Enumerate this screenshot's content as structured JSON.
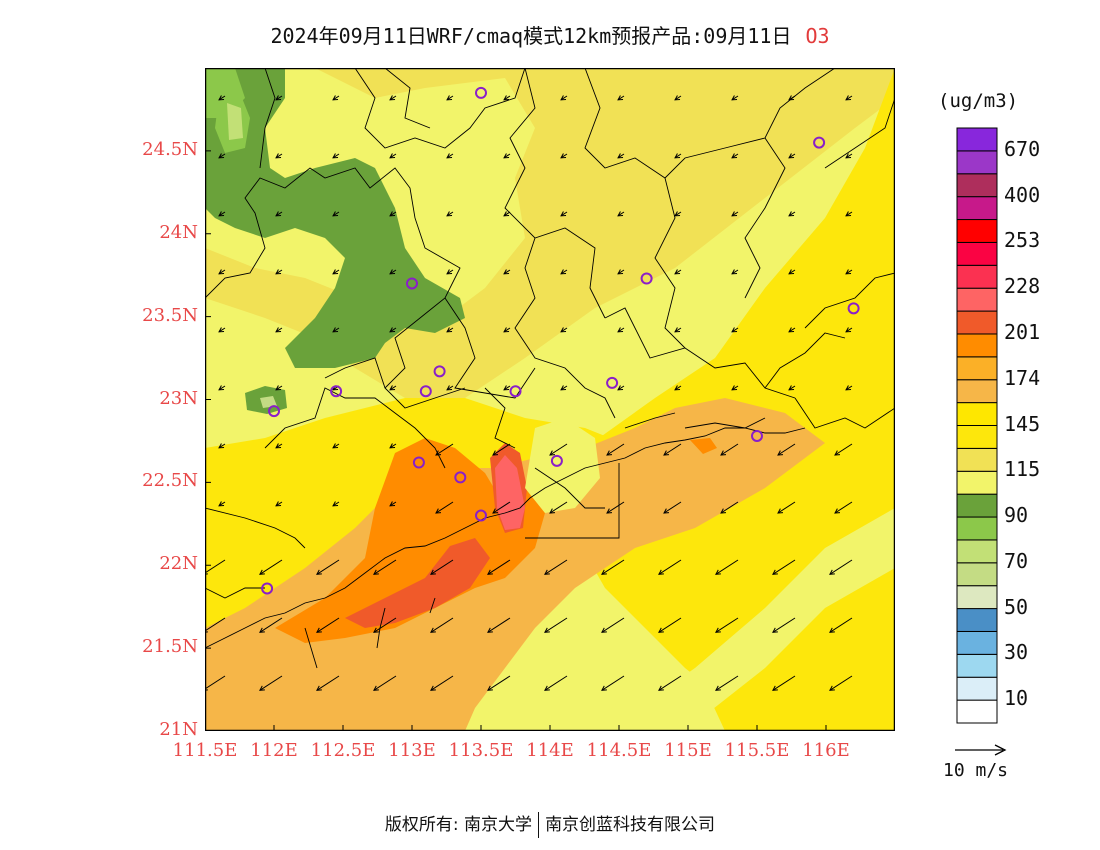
{
  "title": {
    "text": "2024年09月11日WRF/cmaq模式12km预报产品:09月11日",
    "species": "O3"
  },
  "map": {
    "lat_ticks": [
      "24.5N",
      "24N",
      "23.5N",
      "23N",
      "22.5N",
      "22N",
      "21.5N",
      "21N"
    ],
    "lon_ticks": [
      "111.5E",
      "112E",
      "112.5E",
      "113E",
      "113.5E",
      "114E",
      "114.5E",
      "115E",
      "115.5E",
      "116E"
    ],
    "lon_range": [
      111.5,
      116.5
    ],
    "lat_range": [
      21.0,
      25.0
    ],
    "station_markers": [
      [
        113.5,
        24.85
      ],
      [
        115.95,
        24.55
      ],
      [
        113.0,
        23.7
      ],
      [
        114.7,
        23.73
      ],
      [
        116.2,
        23.55
      ],
      [
        112.45,
        23.05
      ],
      [
        113.1,
        23.05
      ],
      [
        113.2,
        23.17
      ],
      [
        113.75,
        23.05
      ],
      [
        114.45,
        23.1
      ],
      [
        112.0,
        22.93
      ],
      [
        115.5,
        22.78
      ],
      [
        113.05,
        22.62
      ],
      [
        113.35,
        22.53
      ],
      [
        114.05,
        22.63
      ],
      [
        113.5,
        22.3
      ],
      [
        111.95,
        21.86
      ]
    ],
    "wind_field": {
      "direction": "northeast to southwest",
      "strength": "weak in north, stronger in southeast"
    }
  },
  "colorbar": {
    "title": "(ug/m3)",
    "colors": [
      "#ffffff",
      "#dbeef8",
      "#9dd8f0",
      "#6ab2e0",
      "#4a8fc6",
      "#dde8c0",
      "#c4dc84",
      "#c2e076",
      "#8cc84a",
      "#6aa23a",
      "#f2f46a",
      "#f1e155",
      "#fde70c",
      "#fee700",
      "#f6b648",
      "#fbb027",
      "#ff8c00",
      "#f05a2a",
      "#fe6464",
      "#fb3151",
      "#fa0343",
      "#ff0000",
      "#c7198a",
      "#ae2e5c",
      "#9b37c8",
      "#8827dc"
    ],
    "labels": [
      "10",
      "30",
      "50",
      "70",
      "90",
      "115",
      "145",
      "174",
      "201",
      "228",
      "253",
      "400",
      "670"
    ]
  },
  "wind_reference": {
    "label": "10 m/s"
  },
  "footer": {
    "left": "版权所有: 南京大学",
    "right": "南京创蓝科技有限公司"
  }
}
